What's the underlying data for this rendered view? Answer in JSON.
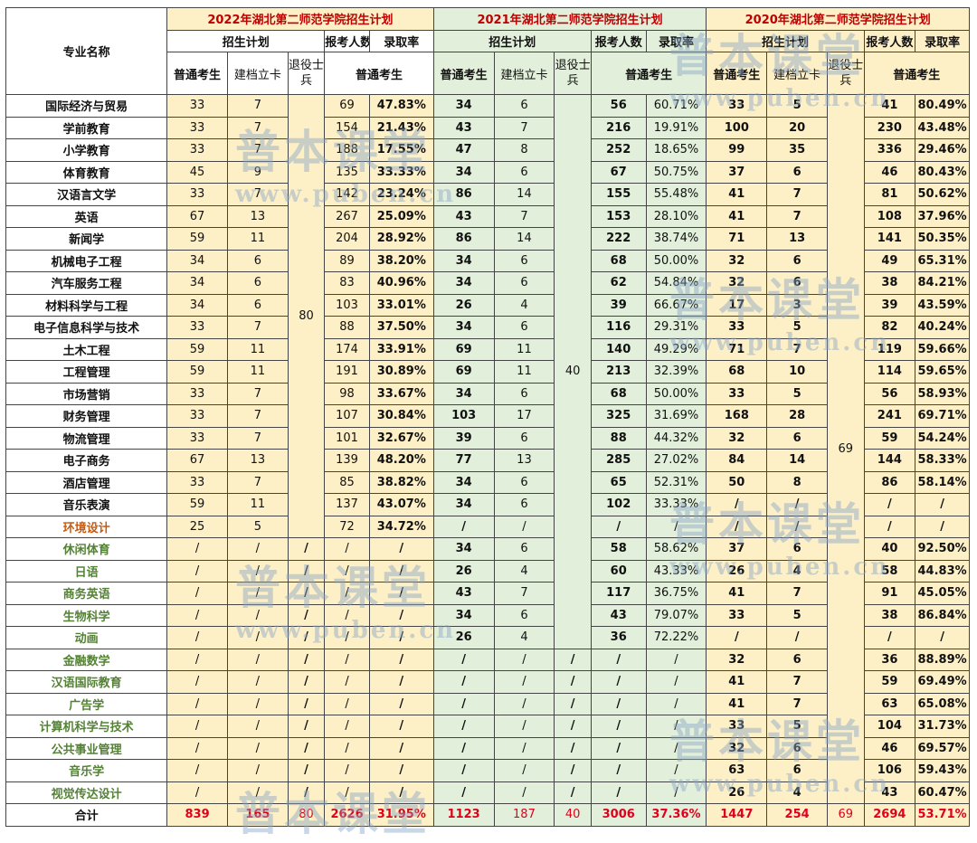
{
  "headers": {
    "col_name": "专业名称",
    "y2022": "2022年湖北第二师范学院招生计划",
    "y2021": "2021年湖北第二师范学院招生计划",
    "y2020": "2020年湖北第二师范学院招生计划",
    "plan": "招生计划",
    "applicants": "报考人数",
    "rate": "录取率",
    "regular": "普通考生",
    "card": "建档立卡",
    "veteran": "退役士兵"
  },
  "veteran_counts": {
    "y2022": "80",
    "y2021": "40",
    "y2020": "69"
  },
  "rows": [
    {
      "name": "国际经济与贸易",
      "style": "black",
      "c": [
        "33",
        "7",
        "69",
        "47.83%",
        "34",
        "6",
        "56",
        "60.71%",
        "33",
        "5",
        "41",
        "80.49%"
      ]
    },
    {
      "name": "学前教育",
      "style": "black",
      "c": [
        "33",
        "7",
        "154",
        "21.43%",
        "43",
        "7",
        "216",
        "19.91%",
        "100",
        "20",
        "230",
        "43.48%"
      ]
    },
    {
      "name": "小学教育",
      "style": "black",
      "c": [
        "33",
        "7",
        "188",
        "17.55%",
        "47",
        "8",
        "252",
        "18.65%",
        "99",
        "35",
        "336",
        "29.46%"
      ]
    },
    {
      "name": "体育教育",
      "style": "black",
      "c": [
        "45",
        "9",
        "135",
        "33.33%",
        "34",
        "6",
        "67",
        "50.75%",
        "37",
        "6",
        "46",
        "80.43%"
      ]
    },
    {
      "name": "汉语言文学",
      "style": "black",
      "c": [
        "33",
        "7",
        "142",
        "23.24%",
        "86",
        "14",
        "155",
        "55.48%",
        "41",
        "7",
        "81",
        "50.62%"
      ]
    },
    {
      "name": "英语",
      "style": "black",
      "c": [
        "67",
        "13",
        "267",
        "25.09%",
        "43",
        "7",
        "153",
        "28.10%",
        "41",
        "7",
        "108",
        "37.96%"
      ]
    },
    {
      "name": "新闻学",
      "style": "black",
      "c": [
        "59",
        "11",
        "204",
        "28.92%",
        "86",
        "14",
        "222",
        "38.74%",
        "71",
        "13",
        "141",
        "50.35%"
      ]
    },
    {
      "name": "机械电子工程",
      "style": "black",
      "c": [
        "34",
        "6",
        "89",
        "38.20%",
        "34",
        "6",
        "68",
        "50.00%",
        "32",
        "6",
        "49",
        "65.31%"
      ]
    },
    {
      "name": "汽车服务工程",
      "style": "black",
      "c": [
        "34",
        "6",
        "83",
        "40.96%",
        "34",
        "6",
        "62",
        "54.84%",
        "32",
        "6",
        "38",
        "84.21%"
      ]
    },
    {
      "name": "材料科学与工程",
      "style": "black",
      "c": [
        "34",
        "6",
        "103",
        "33.01%",
        "26",
        "4",
        "39",
        "66.67%",
        "17",
        "3",
        "39",
        "43.59%"
      ]
    },
    {
      "name": "电子信息科学与技术",
      "style": "black",
      "c": [
        "33",
        "7",
        "88",
        "37.50%",
        "34",
        "6",
        "116",
        "29.31%",
        "33",
        "5",
        "82",
        "40.24%"
      ]
    },
    {
      "name": "土木工程",
      "style": "black",
      "c": [
        "59",
        "11",
        "174",
        "33.91%",
        "69",
        "11",
        "140",
        "49.29%",
        "71",
        "7",
        "119",
        "59.66%"
      ]
    },
    {
      "name": "工程管理",
      "style": "black",
      "c": [
        "59",
        "11",
        "191",
        "30.89%",
        "69",
        "11",
        "213",
        "32.39%",
        "68",
        "10",
        "114",
        "59.65%"
      ]
    },
    {
      "name": "市场营销",
      "style": "black",
      "c": [
        "33",
        "7",
        "98",
        "33.67%",
        "34",
        "6",
        "68",
        "50.00%",
        "33",
        "5",
        "56",
        "58.93%"
      ]
    },
    {
      "name": "财务管理",
      "style": "black",
      "c": [
        "33",
        "7",
        "107",
        "30.84%",
        "103",
        "17",
        "325",
        "31.69%",
        "168",
        "28",
        "241",
        "69.71%"
      ]
    },
    {
      "name": "物流管理",
      "style": "black",
      "c": [
        "33",
        "7",
        "101",
        "32.67%",
        "39",
        "6",
        "88",
        "44.32%",
        "32",
        "6",
        "59",
        "54.24%"
      ]
    },
    {
      "name": "电子商务",
      "style": "black",
      "c": [
        "67",
        "13",
        "139",
        "48.20%",
        "77",
        "13",
        "285",
        "27.02%",
        "84",
        "14",
        "144",
        "58.33%"
      ]
    },
    {
      "name": "酒店管理",
      "style": "black",
      "c": [
        "33",
        "7",
        "85",
        "38.82%",
        "34",
        "6",
        "65",
        "52.31%",
        "50",
        "8",
        "86",
        "58.14%"
      ]
    },
    {
      "name": "音乐表演",
      "style": "black",
      "c": [
        "59",
        "11",
        "137",
        "43.07%",
        "34",
        "6",
        "102",
        "33.33%",
        "/",
        "/",
        "/",
        "/"
      ]
    },
    {
      "name": "环境设计",
      "style": "orange",
      "c": [
        "25",
        "5",
        "72",
        "34.72%",
        "/",
        "/",
        "/",
        "/",
        "/",
        "/",
        "/",
        "/"
      ]
    },
    {
      "name": "休闲体育",
      "style": "green",
      "c": [
        "/",
        "/",
        "/",
        "/",
        "34",
        "6",
        "58",
        "58.62%",
        "37",
        "6",
        "40",
        "92.50%"
      ]
    },
    {
      "name": "日语",
      "style": "green",
      "c": [
        "/",
        "/",
        "/",
        "/",
        "26",
        "4",
        "60",
        "43.33%",
        "26",
        "4",
        "58",
        "44.83%"
      ]
    },
    {
      "name": "商务英语",
      "style": "green",
      "c": [
        "/",
        "/",
        "/",
        "/",
        "43",
        "7",
        "117",
        "36.75%",
        "41",
        "7",
        "91",
        "45.05%"
      ]
    },
    {
      "name": "生物科学",
      "style": "green",
      "c": [
        "/",
        "/",
        "/",
        "/",
        "34",
        "6",
        "43",
        "79.07%",
        "33",
        "5",
        "38",
        "86.84%"
      ]
    },
    {
      "name": "动画",
      "style": "green",
      "c": [
        "/",
        "/",
        "/",
        "/",
        "26",
        "4",
        "36",
        "72.22%",
        "/",
        "/",
        "/",
        "/"
      ]
    },
    {
      "name": "金融数学",
      "style": "green",
      "c": [
        "/",
        "/",
        "/",
        "/",
        "/",
        "/",
        "/",
        "/",
        "32",
        "6",
        "36",
        "88.89%"
      ]
    },
    {
      "name": "汉语国际教育",
      "style": "green",
      "c": [
        "/",
        "/",
        "/",
        "/",
        "/",
        "/",
        "/",
        "/",
        "41",
        "7",
        "59",
        "69.49%"
      ]
    },
    {
      "name": "广告学",
      "style": "green",
      "c": [
        "/",
        "/",
        "/",
        "/",
        "/",
        "/",
        "/",
        "/",
        "41",
        "7",
        "63",
        "65.08%"
      ]
    },
    {
      "name": "计算机科学与技术",
      "style": "green",
      "c": [
        "/",
        "/",
        "/",
        "/",
        "/",
        "/",
        "/",
        "/",
        "33",
        "5",
        "104",
        "31.73%"
      ]
    },
    {
      "name": "公共事业管理",
      "style": "green",
      "c": [
        "/",
        "/",
        "/",
        "/",
        "/",
        "/",
        "/",
        "/",
        "32",
        "6",
        "46",
        "69.57%"
      ]
    },
    {
      "name": "音乐学",
      "style": "green",
      "c": [
        "/",
        "/",
        "/",
        "/",
        "/",
        "/",
        "/",
        "/",
        "63",
        "6",
        "106",
        "59.43%"
      ]
    },
    {
      "name": "视觉传达设计",
      "style": "green",
      "c": [
        "/",
        "/",
        "/",
        "/",
        "/",
        "/",
        "/",
        "/",
        "26",
        "4",
        "43",
        "60.47%"
      ]
    }
  ],
  "vet_slash": {
    "y2022_from": 20,
    "y2021_from": 25
  },
  "total": {
    "name": "合计",
    "c": [
      "839",
      "165",
      "80",
      "2626",
      "31.95%",
      "1123",
      "187",
      "40",
      "3006",
      "37.36%",
      "1447",
      "254",
      "69",
      "2694",
      "53.71%"
    ]
  },
  "watermark": {
    "text": "普本课堂",
    "url": "www.puben.cn"
  },
  "colors": {
    "y2022_bg": "#fdefc6",
    "y2021_bg": "#e2efda",
    "title_red": "#c00000",
    "total_red": "#e0001b",
    "orange": "#c55a11",
    "green": "#548235"
  }
}
